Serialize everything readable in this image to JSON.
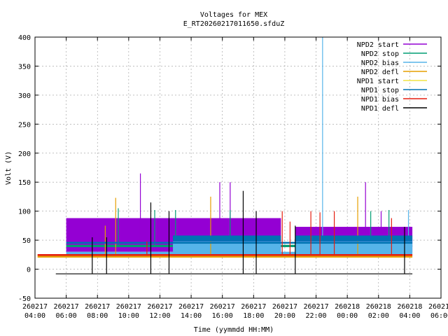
{
  "chart_data": {
    "type": "line",
    "title": "Voltages for MEX",
    "subtitle": "E_RT20260217011650.sfduZ",
    "xlabel": "Time (yymmdd HH:MM)",
    "ylabel": "Volt (V)",
    "ylim": [
      -50,
      400
    ],
    "yticks": [
      -50,
      0,
      50,
      100,
      150,
      200,
      250,
      300,
      350,
      400
    ],
    "xlim_hours": [
      4,
      30
    ],
    "xticks": [
      {
        "date": "260217",
        "time": "04:00"
      },
      {
        "date": "260217",
        "time": "06:00"
      },
      {
        "date": "260217",
        "time": "08:00"
      },
      {
        "date": "260217",
        "time": "10:00"
      },
      {
        "date": "260217",
        "time": "12:00"
      },
      {
        "date": "260217",
        "time": "14:00"
      },
      {
        "date": "260217",
        "time": "16:00"
      },
      {
        "date": "260217",
        "time": "18:00"
      },
      {
        "date": "260217",
        "time": "20:00"
      },
      {
        "date": "260217",
        "time": "22:00"
      },
      {
        "date": "260218",
        "time": "00:00"
      },
      {
        "date": "260218",
        "time": "02:00"
      },
      {
        "date": "260218",
        "time": "04:00"
      },
      {
        "date": "260218",
        "time": "06:00"
      }
    ],
    "grid": true,
    "legend_position": "top-right",
    "series": [
      {
        "name": "NPD2 start",
        "color": "#9400d3",
        "bands": [
          {
            "start": "260217 06:00",
            "end": "260217 19:45",
            "low": 30,
            "high": 88
          },
          {
            "start": "260217 20:40",
            "end": "260218 04:10",
            "low": 30,
            "high": 73
          }
        ],
        "spikes": [
          {
            "time": "260217 10:45",
            "value": 165
          },
          {
            "time": "260217 15:50",
            "value": 150
          },
          {
            "time": "260217 16:30",
            "value": 150
          },
          {
            "time": "260218 01:10",
            "value": 150
          },
          {
            "time": "260218 02:10",
            "value": 100
          }
        ]
      },
      {
        "name": "NPD2 stop",
        "color": "#009e73",
        "bands": [
          {
            "start": "260217 06:00",
            "end": "260218 04:10",
            "low": 38,
            "high": 42
          }
        ],
        "spikes": [
          {
            "time": "260217 09:20",
            "value": 105
          },
          {
            "time": "260217 11:40",
            "value": 102
          },
          {
            "time": "260217 13:00",
            "value": 102
          },
          {
            "time": "260217 16:30",
            "value": 102
          },
          {
            "time": "260218 01:30",
            "value": 100
          },
          {
            "time": "260218 02:40",
            "value": 102
          }
        ]
      },
      {
        "name": "NPD2 bias",
        "color": "#56b4e9",
        "bands": [
          {
            "start": "260217 06:00",
            "end": "260218 04:10",
            "low": 25,
            "high": 30
          },
          {
            "start": "260217 12:50",
            "end": "260217 19:45",
            "low": 28,
            "high": 48
          },
          {
            "start": "260217 20:40",
            "end": "260218 04:10",
            "low": 28,
            "high": 48
          }
        ],
        "spikes": [
          {
            "time": "260217 22:25",
            "value": 400
          },
          {
            "time": "260218 03:55",
            "value": 102
          }
        ]
      },
      {
        "name": "NPD2 defl",
        "color": "#e69f00",
        "bands": [
          {
            "start": "260217 04:10",
            "end": "260218 04:10",
            "low": 20,
            "high": 23
          }
        ],
        "spikes": [
          {
            "time": "260217 09:10",
            "value": 123
          },
          {
            "time": "260217 15:15",
            "value": 125
          },
          {
            "time": "260218 00:40",
            "value": 125
          },
          {
            "time": "260217 08:30",
            "value": 75
          }
        ]
      },
      {
        "name": "NPD1 start",
        "color": "#f0e442",
        "bands": [
          {
            "start": "260217 04:10",
            "end": "260218 04:10",
            "low": 23,
            "high": 25
          }
        ],
        "spikes": []
      },
      {
        "name": "NPD1 stop",
        "color": "#0072b2",
        "bands": [
          {
            "start": "260217 06:00",
            "end": "260218 04:10",
            "low": 44,
            "high": 47
          },
          {
            "start": "260217 12:50",
            "end": "260217 19:45",
            "low": 48,
            "high": 58
          },
          {
            "start": "260217 20:40",
            "end": "260218 04:10",
            "low": 48,
            "high": 58
          }
        ],
        "spikes": []
      },
      {
        "name": "NPD1 bias",
        "color": "#e51e10",
        "bands": [
          {
            "start": "260217 04:10",
            "end": "260218 04:10",
            "low": 23,
            "high": 26
          }
        ],
        "spikes": [
          {
            "time": "260217 11:10",
            "value": 48
          },
          {
            "time": "260217 19:50",
            "value": 100
          },
          {
            "time": "260217 20:20",
            "value": 82
          },
          {
            "time": "260217 21:40",
            "value": 100
          },
          {
            "time": "260217 22:15",
            "value": 98
          },
          {
            "time": "260217 23:10",
            "value": 100
          },
          {
            "time": "260218 02:50",
            "value": 88
          }
        ]
      },
      {
        "name": "NPD1 defl",
        "color": "#000000",
        "bands": [
          {
            "start": "260217 05:20",
            "end": "260218 04:10",
            "low": -8,
            "high": -8
          }
        ],
        "spikes": [
          {
            "time": "260217 07:40",
            "value": 55
          },
          {
            "time": "260217 08:35",
            "value": 55
          },
          {
            "time": "260217 11:25",
            "value": 115
          },
          {
            "time": "260217 12:35",
            "value": 100
          },
          {
            "time": "260217 17:20",
            "value": 135
          },
          {
            "time": "260217 18:10",
            "value": 100
          },
          {
            "time": "260217 20:40",
            "value": 75
          },
          {
            "time": "260218 03:40",
            "value": 73
          }
        ]
      }
    ]
  }
}
